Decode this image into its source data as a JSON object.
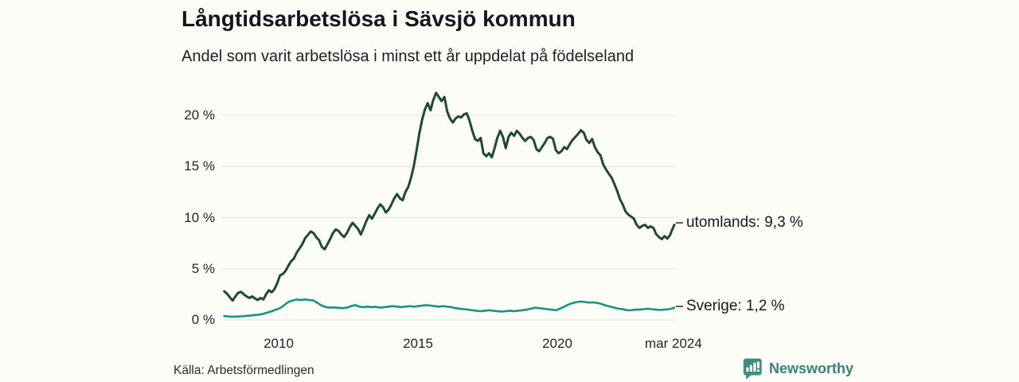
{
  "header": {
    "title": "Långtidsarbetslösa i Sävsjö kommun",
    "subtitle": "Andel som varit arbetslösa i minst ett år uppdelat på födelseland"
  },
  "footer": {
    "source": "Källa: Arbetsförmedlingen",
    "brand": "Newsworthy",
    "brand_icon": "speech-bubble-bar-chart-icon"
  },
  "colors": {
    "background": "#fdfdf8",
    "gridline": "#e0e0dc",
    "text": "#1d2022",
    "utomlands_line": "#1e4937",
    "sverige_line": "#13987f",
    "legend_dash": "#5e5e5e",
    "brand_teal": "#35837b"
  },
  "chart_data": {
    "type": "line",
    "title": "Långtidsarbetslösa i Sävsjö kommun",
    "subtitle": "Andel som varit arbetslösa i minst ett år uppdelat på födelseland",
    "xlabel": "",
    "ylabel": "",
    "grid": "horizontal",
    "legend_position": "right-of-line-ends",
    "x_range": [
      2008.05,
      2024.2
    ],
    "y_range": [
      0,
      22.5
    ],
    "y_axis": {
      "ticks": [
        {
          "value": 0,
          "label": "0 %"
        },
        {
          "value": 5,
          "label": "5 %"
        },
        {
          "value": 10,
          "label": "10 %"
        },
        {
          "value": 15,
          "label": "15 %"
        },
        {
          "value": 20,
          "label": "20 %"
        }
      ]
    },
    "x_axis": {
      "ticks": [
        {
          "value": 2010,
          "label": "2010"
        },
        {
          "value": 2015,
          "label": "2015"
        },
        {
          "value": 2020,
          "label": "2020"
        },
        {
          "value": 2024.17,
          "label": "mar 2024"
        }
      ]
    },
    "legend": [
      {
        "series": "utomlands",
        "label": "utomlands: 9,3 %",
        "anchor_pct": 9.3
      },
      {
        "series": "Sverige",
        "label": "Sverige: 1,2 %",
        "anchor_pct": 1.2
      }
    ],
    "series": [
      {
        "name": "utomlands",
        "last_value_label": "9,3 %",
        "color": "#1e4937",
        "stroke_width": 3,
        "points": [
          [
            2008.05,
            2.8
          ],
          [
            2008.15,
            2.55
          ],
          [
            2008.25,
            2.2
          ],
          [
            2008.35,
            1.9
          ],
          [
            2008.45,
            2.3
          ],
          [
            2008.55,
            2.65
          ],
          [
            2008.65,
            2.75
          ],
          [
            2008.75,
            2.5
          ],
          [
            2008.85,
            2.3
          ],
          [
            2008.95,
            2.15
          ],
          [
            2009.05,
            2.3
          ],
          [
            2009.15,
            2.1
          ],
          [
            2009.25,
            1.95
          ],
          [
            2009.35,
            2.15
          ],
          [
            2009.45,
            2.0
          ],
          [
            2009.55,
            2.5
          ],
          [
            2009.65,
            2.9
          ],
          [
            2009.75,
            2.7
          ],
          [
            2009.85,
            3.0
          ],
          [
            2009.95,
            3.6
          ],
          [
            2010.05,
            4.35
          ],
          [
            2010.15,
            4.5
          ],
          [
            2010.25,
            4.8
          ],
          [
            2010.35,
            5.3
          ],
          [
            2010.45,
            5.75
          ],
          [
            2010.55,
            6.0
          ],
          [
            2010.65,
            6.6
          ],
          [
            2010.75,
            7.0
          ],
          [
            2010.85,
            7.4
          ],
          [
            2010.95,
            8.0
          ],
          [
            2011.05,
            8.3
          ],
          [
            2011.15,
            8.65
          ],
          [
            2011.25,
            8.5
          ],
          [
            2011.35,
            8.1
          ],
          [
            2011.45,
            7.8
          ],
          [
            2011.55,
            7.15
          ],
          [
            2011.65,
            6.9
          ],
          [
            2011.75,
            7.4
          ],
          [
            2011.85,
            7.9
          ],
          [
            2011.95,
            8.5
          ],
          [
            2012.05,
            8.85
          ],
          [
            2012.15,
            8.7
          ],
          [
            2012.25,
            8.35
          ],
          [
            2012.35,
            8.1
          ],
          [
            2012.45,
            8.5
          ],
          [
            2012.55,
            9.05
          ],
          [
            2012.65,
            9.5
          ],
          [
            2012.75,
            9.2
          ],
          [
            2012.85,
            8.9
          ],
          [
            2012.95,
            8.35
          ],
          [
            2013.05,
            9.0
          ],
          [
            2013.15,
            9.7
          ],
          [
            2013.25,
            10.25
          ],
          [
            2013.35,
            9.9
          ],
          [
            2013.45,
            10.4
          ],
          [
            2013.55,
            10.9
          ],
          [
            2013.65,
            11.3
          ],
          [
            2013.75,
            11.0
          ],
          [
            2013.85,
            10.5
          ],
          [
            2013.95,
            10.8
          ],
          [
            2014.05,
            11.3
          ],
          [
            2014.15,
            11.9
          ],
          [
            2014.25,
            12.3
          ],
          [
            2014.35,
            11.9
          ],
          [
            2014.45,
            11.7
          ],
          [
            2014.55,
            12.5
          ],
          [
            2014.65,
            13.0
          ],
          [
            2014.75,
            13.9
          ],
          [
            2014.85,
            15.0
          ],
          [
            2014.95,
            16.6
          ],
          [
            2015.05,
            18.2
          ],
          [
            2015.15,
            19.6
          ],
          [
            2015.25,
            20.6
          ],
          [
            2015.35,
            21.2
          ],
          [
            2015.45,
            20.5
          ],
          [
            2015.55,
            21.5
          ],
          [
            2015.65,
            22.2
          ],
          [
            2015.75,
            21.8
          ],
          [
            2015.85,
            21.4
          ],
          [
            2015.95,
            21.8
          ],
          [
            2016.05,
            20.4
          ],
          [
            2016.15,
            19.7
          ],
          [
            2016.25,
            19.3
          ],
          [
            2016.35,
            19.7
          ],
          [
            2016.45,
            19.9
          ],
          [
            2016.55,
            19.8
          ],
          [
            2016.65,
            20.1
          ],
          [
            2016.75,
            20.2
          ],
          [
            2016.85,
            19.5
          ],
          [
            2016.95,
            18.5
          ],
          [
            2017.05,
            17.7
          ],
          [
            2017.15,
            17.5
          ],
          [
            2017.25,
            17.8
          ],
          [
            2017.35,
            16.3
          ],
          [
            2017.45,
            16.0
          ],
          [
            2017.55,
            16.3
          ],
          [
            2017.65,
            15.9
          ],
          [
            2017.75,
            16.8
          ],
          [
            2017.85,
            17.8
          ],
          [
            2017.95,
            18.5
          ],
          [
            2018.05,
            17.9
          ],
          [
            2018.15,
            16.8
          ],
          [
            2018.25,
            17.9
          ],
          [
            2018.35,
            18.3
          ],
          [
            2018.45,
            18.0
          ],
          [
            2018.55,
            18.5
          ],
          [
            2018.65,
            18.2
          ],
          [
            2018.75,
            17.8
          ],
          [
            2018.85,
            17.5
          ],
          [
            2018.95,
            17.8
          ],
          [
            2019.05,
            17.9
          ],
          [
            2019.15,
            17.6
          ],
          [
            2019.25,
            16.7
          ],
          [
            2019.35,
            16.5
          ],
          [
            2019.45,
            16.9
          ],
          [
            2019.55,
            17.3
          ],
          [
            2019.65,
            17.8
          ],
          [
            2019.75,
            17.9
          ],
          [
            2019.85,
            17.7
          ],
          [
            2019.95,
            16.6
          ],
          [
            2020.05,
            16.3
          ],
          [
            2020.15,
            16.5
          ],
          [
            2020.25,
            16.9
          ],
          [
            2020.35,
            16.7
          ],
          [
            2020.45,
            17.2
          ],
          [
            2020.55,
            17.6
          ],
          [
            2020.65,
            17.9
          ],
          [
            2020.75,
            18.2
          ],
          [
            2020.85,
            18.55
          ],
          [
            2020.95,
            18.3
          ],
          [
            2021.05,
            17.6
          ],
          [
            2021.15,
            17.3
          ],
          [
            2021.25,
            17.7
          ],
          [
            2021.35,
            16.9
          ],
          [
            2021.45,
            16.4
          ],
          [
            2021.55,
            16.1
          ],
          [
            2021.65,
            15.2
          ],
          [
            2021.75,
            14.7
          ],
          [
            2021.85,
            14.3
          ],
          [
            2021.95,
            13.9
          ],
          [
            2022.05,
            13.3
          ],
          [
            2022.15,
            12.6
          ],
          [
            2022.25,
            11.8
          ],
          [
            2022.35,
            11.3
          ],
          [
            2022.45,
            10.6
          ],
          [
            2022.55,
            10.3
          ],
          [
            2022.65,
            10.1
          ],
          [
            2022.75,
            9.9
          ],
          [
            2022.85,
            9.3
          ],
          [
            2022.95,
            9.0
          ],
          [
            2023.05,
            9.2
          ],
          [
            2023.15,
            9.3
          ],
          [
            2023.25,
            9.0
          ],
          [
            2023.35,
            9.15
          ],
          [
            2023.45,
            9.0
          ],
          [
            2023.55,
            8.4
          ],
          [
            2023.65,
            8.1
          ],
          [
            2023.75,
            7.9
          ],
          [
            2023.85,
            8.2
          ],
          [
            2023.95,
            7.95
          ],
          [
            2024.05,
            8.3
          ],
          [
            2024.12,
            8.8
          ],
          [
            2024.2,
            9.3
          ]
        ]
      },
      {
        "name": "Sverige",
        "last_value_label": "1,2 %",
        "color": "#13987f",
        "stroke_width": 2.6,
        "points": [
          [
            2008.05,
            0.38
          ],
          [
            2008.25,
            0.33
          ],
          [
            2008.45,
            0.32
          ],
          [
            2008.65,
            0.35
          ],
          [
            2008.85,
            0.4
          ],
          [
            2009.05,
            0.45
          ],
          [
            2009.25,
            0.5
          ],
          [
            2009.45,
            0.6
          ],
          [
            2009.6,
            0.72
          ],
          [
            2009.75,
            0.85
          ],
          [
            2009.9,
            1.0
          ],
          [
            2010.05,
            1.15
          ],
          [
            2010.2,
            1.45
          ],
          [
            2010.35,
            1.75
          ],
          [
            2010.5,
            1.9
          ],
          [
            2010.65,
            2.0
          ],
          [
            2010.8,
            1.95
          ],
          [
            2010.95,
            2.0
          ],
          [
            2011.1,
            1.95
          ],
          [
            2011.25,
            1.9
          ],
          [
            2011.4,
            1.65
          ],
          [
            2011.55,
            1.4
          ],
          [
            2011.7,
            1.25
          ],
          [
            2011.85,
            1.2
          ],
          [
            2012.0,
            1.22
          ],
          [
            2012.15,
            1.18
          ],
          [
            2012.3,
            1.15
          ],
          [
            2012.45,
            1.2
          ],
          [
            2012.6,
            1.35
          ],
          [
            2012.75,
            1.45
          ],
          [
            2012.9,
            1.3
          ],
          [
            2013.05,
            1.25
          ],
          [
            2013.2,
            1.3
          ],
          [
            2013.35,
            1.25
          ],
          [
            2013.5,
            1.28
          ],
          [
            2013.65,
            1.2
          ],
          [
            2013.8,
            1.25
          ],
          [
            2013.95,
            1.3
          ],
          [
            2014.1,
            1.35
          ],
          [
            2014.25,
            1.3
          ],
          [
            2014.4,
            1.25
          ],
          [
            2014.55,
            1.3
          ],
          [
            2014.7,
            1.35
          ],
          [
            2014.85,
            1.3
          ],
          [
            2015.0,
            1.35
          ],
          [
            2015.15,
            1.4
          ],
          [
            2015.3,
            1.45
          ],
          [
            2015.45,
            1.4
          ],
          [
            2015.6,
            1.35
          ],
          [
            2015.75,
            1.3
          ],
          [
            2015.9,
            1.35
          ],
          [
            2016.05,
            1.3
          ],
          [
            2016.2,
            1.25
          ],
          [
            2016.35,
            1.15
          ],
          [
            2016.5,
            1.1
          ],
          [
            2016.65,
            1.05
          ],
          [
            2016.8,
            1.0
          ],
          [
            2016.95,
            0.95
          ],
          [
            2017.1,
            0.9
          ],
          [
            2017.25,
            0.85
          ],
          [
            2017.4,
            0.9
          ],
          [
            2017.55,
            0.95
          ],
          [
            2017.7,
            0.9
          ],
          [
            2017.85,
            0.85
          ],
          [
            2018.0,
            0.82
          ],
          [
            2018.15,
            0.85
          ],
          [
            2018.3,
            0.9
          ],
          [
            2018.45,
            0.85
          ],
          [
            2018.6,
            0.9
          ],
          [
            2018.75,
            0.95
          ],
          [
            2018.9,
            1.0
          ],
          [
            2019.05,
            1.1
          ],
          [
            2019.2,
            1.2
          ],
          [
            2019.35,
            1.15
          ],
          [
            2019.5,
            1.1
          ],
          [
            2019.65,
            1.05
          ],
          [
            2019.8,
            1.0
          ],
          [
            2019.95,
            0.95
          ],
          [
            2020.1,
            1.1
          ],
          [
            2020.25,
            1.3
          ],
          [
            2020.4,
            1.5
          ],
          [
            2020.55,
            1.65
          ],
          [
            2020.7,
            1.75
          ],
          [
            2020.85,
            1.8
          ],
          [
            2021.0,
            1.75
          ],
          [
            2021.15,
            1.7
          ],
          [
            2021.3,
            1.72
          ],
          [
            2021.45,
            1.65
          ],
          [
            2021.6,
            1.55
          ],
          [
            2021.75,
            1.4
          ],
          [
            2021.9,
            1.3
          ],
          [
            2022.05,
            1.2
          ],
          [
            2022.2,
            1.1
          ],
          [
            2022.35,
            1.05
          ],
          [
            2022.5,
            0.95
          ],
          [
            2022.65,
            0.95
          ],
          [
            2022.8,
            1.0
          ],
          [
            2022.95,
            1.0
          ],
          [
            2023.1,
            1.05
          ],
          [
            2023.25,
            1.1
          ],
          [
            2023.4,
            1.05
          ],
          [
            2023.55,
            1.0
          ],
          [
            2023.7,
            0.98
          ],
          [
            2023.85,
            1.0
          ],
          [
            2024.0,
            1.05
          ],
          [
            2024.1,
            1.1
          ],
          [
            2024.2,
            1.2
          ]
        ]
      }
    ]
  }
}
